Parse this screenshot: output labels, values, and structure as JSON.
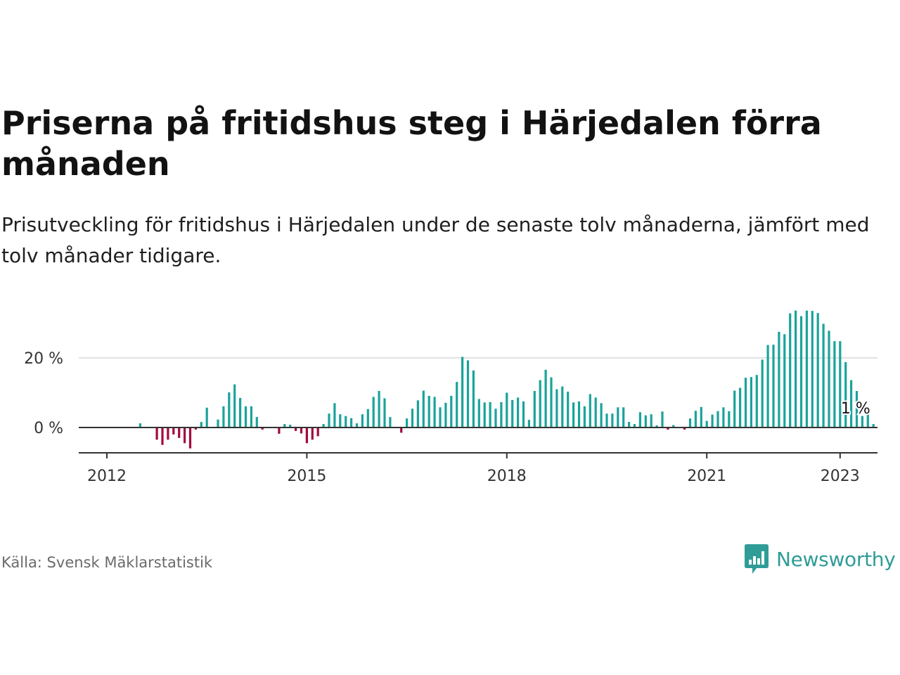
{
  "title": "Priserna på fritidshus steg i Härjedalen förra månaden",
  "subtitle": "Prisutveckling för fritidshus i Härjedalen under de senaste tolv månaderna, jämfört med tolv månader tidigare.",
  "source": "Källa: Svensk Mäklarstatistik",
  "brand": "Newsworthy",
  "colors": {
    "positive": "#1aa39a",
    "negative": "#a3093d",
    "brand": "#2f9c97",
    "grid": "#d9d9d9",
    "axis": "#333333"
  },
  "chart_data": {
    "type": "bar",
    "ylim": [
      -7,
      35
    ],
    "yticks": [
      0,
      20
    ],
    "ytick_labels": [
      "0 %",
      "20 %"
    ],
    "xtick_labels": [
      "2012",
      "2015",
      "2018",
      "2021",
      "2023"
    ],
    "xtick_months": [
      0,
      36,
      72,
      108,
      132
    ],
    "start": "2012-01",
    "annotation": {
      "text": "1 %",
      "month": 132,
      "value": 1
    },
    "grid": true,
    "legend": "none",
    "values": [
      0,
      0,
      0,
      0,
      0,
      0,
      1.2,
      0,
      0,
      -3.5,
      -5,
      -3.5,
      -2,
      -3,
      -4.5,
      -6,
      -0.6,
      1.6,
      5.7,
      0,
      2.3,
      6.1,
      10.1,
      12.4,
      8.5,
      6.1,
      6.1,
      3,
      -0.6,
      0,
      0,
      -1.8,
      1,
      0.8,
      -1,
      -1.7,
      -4.5,
      -3.5,
      -2.5,
      1,
      4,
      7,
      3.8,
      3.3,
      2.7,
      1.2,
      3.8,
      5.3,
      8.8,
      10.5,
      8.4,
      3,
      0,
      -1.5,
      2.6,
      5.4,
      7.8,
      10.6,
      9.1,
      8.8,
      5.8,
      7.1,
      9.1,
      13.1,
      20.3,
      19.3,
      16.4,
      8.2,
      7.2,
      7.3,
      5.4,
      7.3,
      10,
      7.9,
      8.6,
      7.5,
      2.2,
      10.5,
      13.6,
      16.6,
      14.4,
      11,
      11.8,
      10.3,
      7.2,
      7.5,
      6.1,
      9.6,
      8.6,
      7,
      4,
      4,
      5.8,
      5.8,
      1.6,
      1,
      4.4,
      3.5,
      3.8,
      0.6,
      4.6,
      -0.6,
      0.7,
      0,
      -0.6,
      2.6,
      4.8,
      5.9,
      1.9,
      3.7,
      4.7,
      5.8,
      4.7,
      10.6,
      11.4,
      14.3,
      14.5,
      15.1,
      19.5,
      23.7,
      23.8,
      27.5,
      26.8,
      32.8,
      33.6,
      32,
      33.6,
      33.5,
      32.9,
      29.8,
      27.8,
      24.8,
      24.8,
      18.8,
      13.6,
      10.5,
      3.3,
      4.4,
      1
    ]
  }
}
